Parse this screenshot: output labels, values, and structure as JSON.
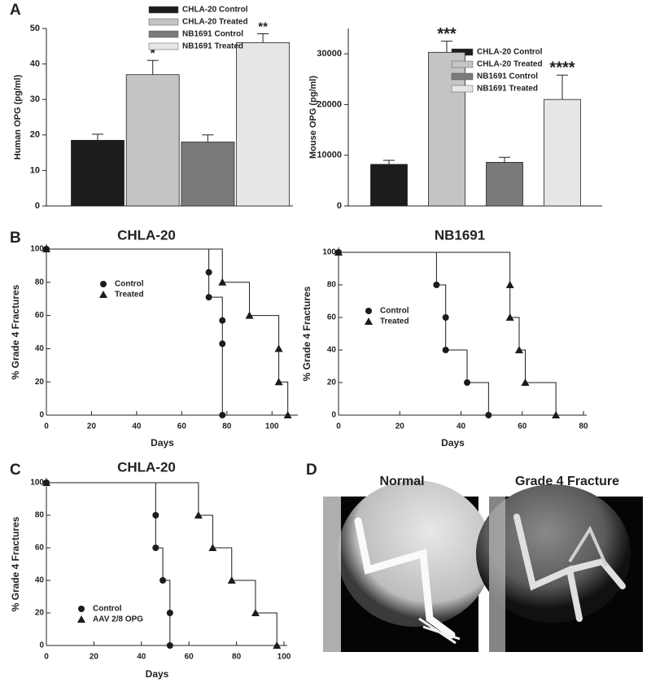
{
  "panel_labels": [
    "A",
    "B",
    "C",
    "D"
  ],
  "chart_data": [
    {
      "type": "bar",
      "ylabel": "Human OPG (pg/ml)",
      "categories": [
        "CHLA-20 Control",
        "CHLA-20 Treated",
        "NB1691 Control",
        "NB1691 Treated"
      ],
      "values": [
        18.5,
        37,
        18,
        46
      ],
      "errors": [
        1.7,
        4,
        2,
        2.5
      ],
      "colors": [
        "#1c1c1c",
        "#c4c4c4",
        "#7a7a7a",
        "#e6e6e6"
      ],
      "significance": [
        null,
        "*",
        null,
        "**"
      ],
      "ylim": [
        0,
        50
      ],
      "yticks": [
        0,
        10,
        20,
        30,
        40,
        50
      ]
    },
    {
      "type": "bar",
      "ylabel": "Mouse OPG (pg/ml)",
      "categories": [
        "CHLA-20 Control",
        "CHLA-20 Treated",
        "NB1691 Control",
        "NB1691 Treated"
      ],
      "values": [
        8200,
        30300,
        8600,
        21000
      ],
      "errors": [
        800,
        2200,
        1000,
        4800
      ],
      "colors": [
        "#1c1c1c",
        "#c4c4c4",
        "#7a7a7a",
        "#e6e6e6"
      ],
      "significance": [
        null,
        "***",
        null,
        "****"
      ],
      "ylim": [
        0,
        35000
      ],
      "yticks": [
        0,
        10000,
        20000,
        30000
      ]
    },
    {
      "type": "step",
      "title": "CHLA-20",
      "xlabel": "Days",
      "ylabel": "% Grade 4 Fractures",
      "series": [
        {
          "name": "Control",
          "marker": "circle",
          "color": "#1c1c1c",
          "x": [
            0,
            72,
            72,
            78,
            78,
            78
          ],
          "values": [
            100,
            86,
            71,
            57,
            43,
            0
          ]
        },
        {
          "name": "Treated",
          "marker": "triangle",
          "color": "#1c1c1c",
          "x": [
            0,
            78,
            90,
            103,
            103,
            107
          ],
          "values": [
            100,
            80,
            60,
            40,
            20,
            0
          ]
        }
      ],
      "xlim": [
        0,
        110
      ],
      "xticks": [
        0,
        20,
        40,
        60,
        80,
        100
      ],
      "ylim": [
        0,
        100
      ],
      "yticks": [
        0,
        20,
        40,
        60,
        80,
        100
      ]
    },
    {
      "type": "step",
      "title": "NB1691",
      "xlabel": "Days",
      "ylabel": "% Grade 4 Fractures",
      "series": [
        {
          "name": "Control",
          "marker": "circle",
          "color": "#1c1c1c",
          "x": [
            0,
            32,
            35,
            35,
            42,
            49
          ],
          "values": [
            100,
            80,
            60,
            40,
            20,
            0
          ]
        },
        {
          "name": "Treated",
          "marker": "triangle",
          "color": "#1c1c1c",
          "x": [
            0,
            56,
            56,
            59,
            61,
            71
          ],
          "values": [
            100,
            80,
            60,
            40,
            20,
            0
          ]
        }
      ],
      "xlim": [
        0,
        80
      ],
      "xticks": [
        0,
        20,
        40,
        60,
        80
      ],
      "ylim": [
        0,
        100
      ],
      "yticks": [
        0,
        20,
        40,
        60,
        80,
        100
      ]
    },
    {
      "type": "step",
      "title": "CHLA-20",
      "xlabel": "Days",
      "ylabel": "% Grade 4 Fractures",
      "series": [
        {
          "name": "Control",
          "marker": "circle",
          "color": "#1c1c1c",
          "x": [
            0,
            46,
            46,
            49,
            52,
            52
          ],
          "values": [
            100,
            80,
            60,
            40,
            20,
            0
          ]
        },
        {
          "name": "AAV 2/8 OPG",
          "marker": "triangle",
          "color": "#1c1c1c",
          "x": [
            0,
            64,
            70,
            78,
            88,
            97
          ],
          "values": [
            100,
            80,
            60,
            40,
            20,
            0
          ]
        }
      ],
      "xlim": [
        0,
        100
      ],
      "xticks": [
        0,
        20,
        40,
        60,
        80,
        100
      ],
      "ylim": [
        0,
        100
      ],
      "yticks": [
        0,
        20,
        40,
        60,
        80,
        100
      ]
    }
  ],
  "images": [
    {
      "title": "Normal"
    },
    {
      "title": "Grade 4 Fracture"
    }
  ]
}
